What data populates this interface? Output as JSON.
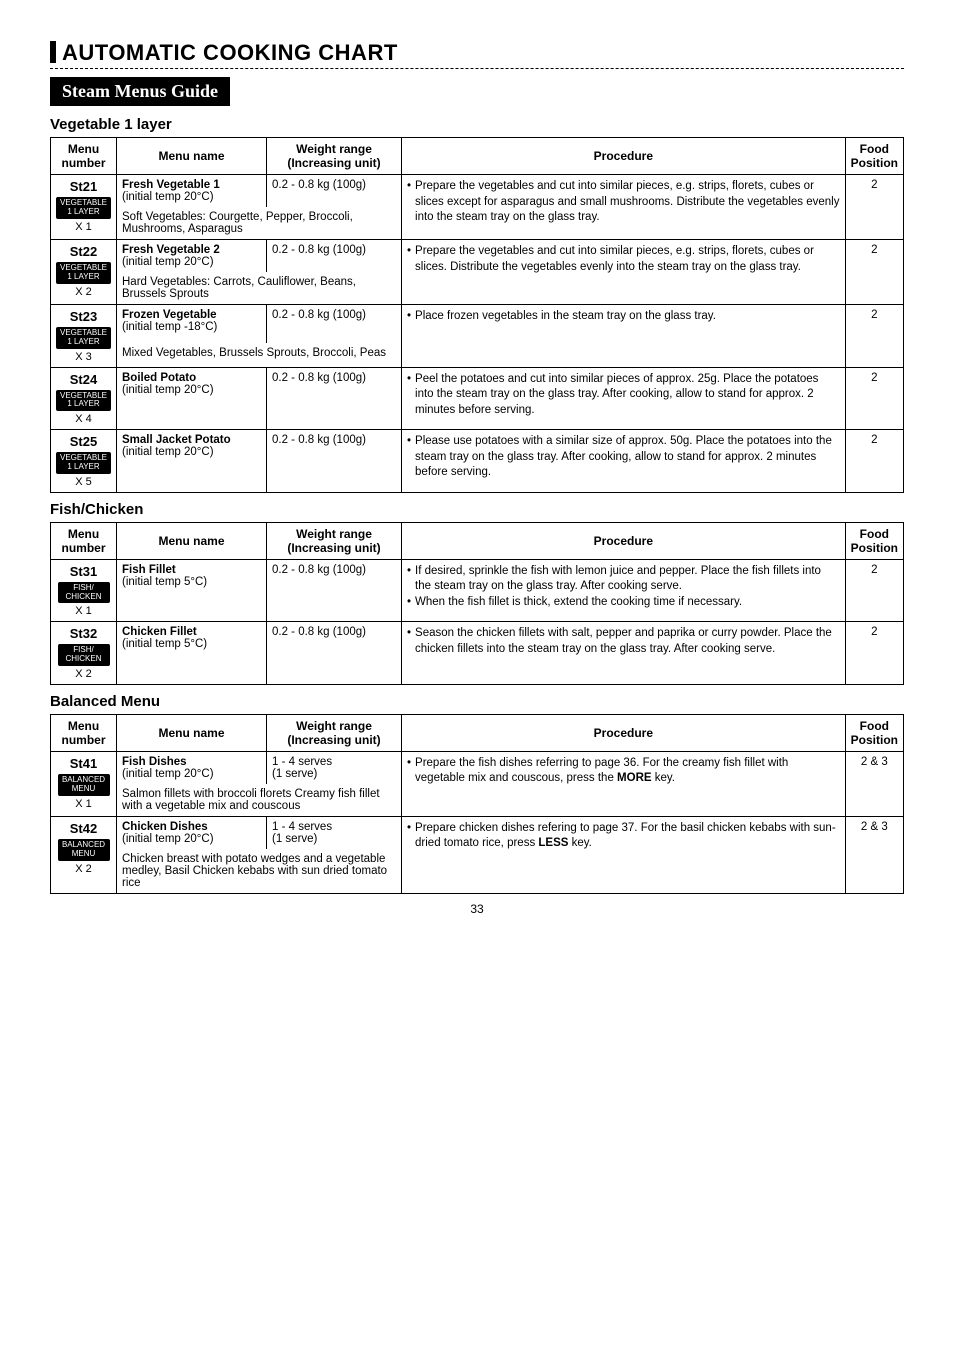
{
  "page": {
    "title": "AUTOMATIC COOKING CHART",
    "banner": "Steam Menus Guide",
    "page_number": "33"
  },
  "headers": {
    "menu_number": "Menu\nnumber",
    "menu_name": "Menu name",
    "weight": "Weight range\n(Increasing unit)",
    "procedure": "Procedure",
    "food": "Food\nPosition"
  },
  "sections": {
    "veg": {
      "heading": "Vegetable 1 layer",
      "rows": [
        {
          "code": "St21",
          "badge": "VEGETABLE\n1 LAYER",
          "x": "X 1",
          "name_bold": "Fresh Vegetable 1",
          "name_sub": "(initial temp 20°C)",
          "weight": "0.2 - 0.8 kg (100g)",
          "row_desc": "Soft Vegetables: Courgette, Pepper, Broccoli, Mushrooms, Asparagus",
          "proc": "Prepare the vegetables and cut into similar pieces, e.g. strips, florets, cubes or slices except for asparagus and small mushrooms. Distribute the vegetables evenly into the steam tray on the glass tray.",
          "food": "2"
        },
        {
          "code": "St22",
          "badge": "VEGETABLE\n1 LAYER",
          "x": "X 2",
          "name_bold": "Fresh Vegetable 2",
          "name_sub": "(initial temp 20°C)",
          "weight": "0.2 - 0.8 kg (100g)",
          "row_desc": "Hard Vegetables: Carrots, Cauliflower, Beans, Brussels Sprouts",
          "proc": "Prepare the vegetables and cut into similar pieces, e.g. strips, florets, cubes or slices. Distribute the vegetables evenly into the steam tray on the glass tray.",
          "food": "2"
        },
        {
          "code": "St23",
          "badge": "VEGETABLE\n1 LAYER",
          "x": "X 3",
          "name_bold": "Frozen Vegetable",
          "name_sub": "(initial temp -18°C)",
          "weight": "0.2 - 0.8 kg (100g)",
          "row_desc": "Mixed Vegetables, Brussels Sprouts, Broccoli, Peas",
          "proc": "Place frozen vegetables in the steam tray on the glass tray.",
          "food": "2"
        },
        {
          "code": "St24",
          "badge": "VEGETABLE\n1 LAYER",
          "x": "X 4",
          "name_bold": "Boiled Potato",
          "name_sub": "(initial temp 20°C)",
          "weight": "0.2 - 0.8 kg (100g)",
          "row_desc": "",
          "proc": "Peel the potatoes and cut into similar pieces of approx. 25g. Place the potatoes into the steam tray on the glass tray. After cooking, allow to stand for approx. 2 minutes before serving.",
          "food": "2"
        },
        {
          "code": "St25",
          "badge": "VEGETABLE\n1 LAYER",
          "x": "X 5",
          "name_bold": "Small Jacket Potato",
          "name_sub": "(initial temp 20°C)",
          "weight": "0.2 - 0.8 kg (100g)",
          "row_desc": "",
          "proc": "Please use potatoes with a similar size of approx. 50g. Place the potatoes into the steam tray on the glass tray. After cooking, allow to stand for approx. 2 minutes before serving.",
          "food": "2"
        }
      ]
    },
    "fish": {
      "heading": "Fish/Chicken",
      "rows": [
        {
          "code": "St31",
          "badge": "FISH/\nCHICKEN",
          "x": "X 1",
          "name_bold": "Fish Fillet",
          "name_sub": "(initial temp 5°C)",
          "weight": "0.2 - 0.8 kg (100g)",
          "proc1": "If desired, sprinkle the fish with lemon juice and pepper. Place the fish fillets into the steam tray on the glass tray. After cooking serve.",
          "proc2": "When the fish fillet is thick, extend the cooking time if necessary.",
          "food": "2"
        },
        {
          "code": "St32",
          "badge": "FISH/\nCHICKEN",
          "x": "X 2",
          "name_bold": "Chicken Fillet",
          "name_sub": "(initial temp 5°C)",
          "weight": "0.2 - 0.8 kg (100g)",
          "proc1": "Season the chicken fillets with salt, pepper and paprika or curry powder. Place the chicken fillets into the steam tray on the glass tray. After cooking serve.",
          "food": "2"
        }
      ]
    },
    "balanced": {
      "heading": "Balanced Menu",
      "rows": [
        {
          "code": "St41",
          "badge": "BALANCED\nMENU",
          "x": "X 1",
          "name_bold": "Fish Dishes",
          "name_sub": "(initial temp 20°C)",
          "weight": "1 - 4 serves\n(1 serve)",
          "row_desc": "Salmon fillets with broccoli florets Creamy fish fillet with a vegetable mix and couscous",
          "proc": "Prepare the fish dishes referring to page 36. For the creamy fish fillet with vegetable mix and couscous, press the ",
          "proc_bold": "MORE",
          "proc_tail": " key.",
          "food": "2 & 3"
        },
        {
          "code": "St42",
          "badge": "BALANCED\nMENU",
          "x": "X 2",
          "name_bold": "Chicken Dishes",
          "name_sub": "(initial temp 20°C)",
          "weight": "1 - 4 serves\n(1 serve)",
          "row_desc": "Chicken breast with potato wedges and a vegetable medley, Basil Chicken kebabs with sun dried tomato rice",
          "proc": "Prepare chicken dishes refering to page 37. For the basil chicken kebabs with sun-dried tomato rice, press ",
          "proc_bold": "LESS",
          "proc_tail": " key.",
          "food": "2 & 3"
        }
      ]
    }
  }
}
